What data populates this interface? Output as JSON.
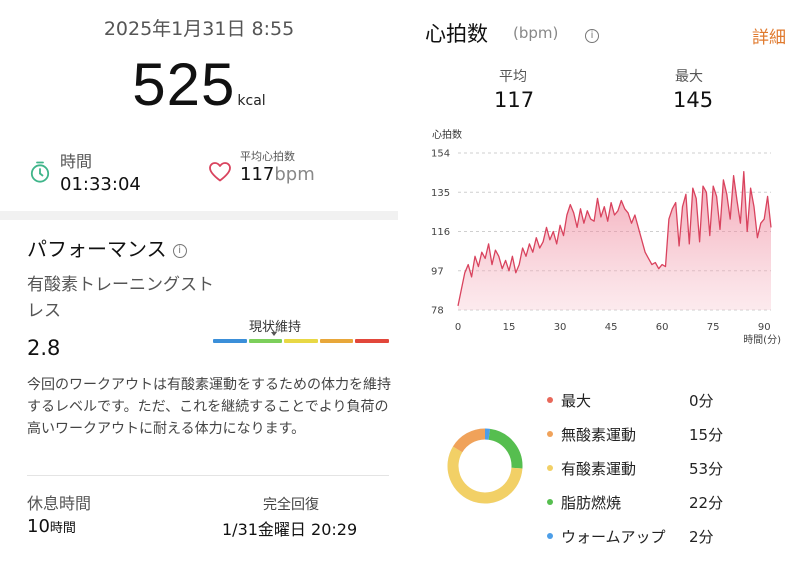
{
  "summary": {
    "datetime": "2025年1月31日 8:55",
    "calories": "525",
    "calories_unit": "kcal",
    "duration_label": "時間",
    "duration_value": "01:33:04",
    "avg_hr_label": "平均心拍数",
    "avg_hr_value": "117",
    "avg_hr_unit": "bpm"
  },
  "performance": {
    "title": "パフォーマンス",
    "info_icon": "i",
    "stress_label": "有酸素トレーニングストレス",
    "stress_value": "2.8",
    "status_label": "現状維持",
    "scale_colors": [
      "#3b8fd9",
      "#7ccf5b",
      "#e8d845",
      "#e8a73a",
      "#e2473b"
    ],
    "description": "今回のワークアウトは有酸素運動をするための体力を維持するレベルです。ただ、これを継続することでより負荷の高いワークアウトに耐える体力になります。",
    "rest_label": "休息時間",
    "rest_value": "10",
    "rest_unit": "時間",
    "recovery_label": "完全回復",
    "recovery_value": "1/31金曜日 20:29"
  },
  "heart_rate": {
    "title": "心拍数",
    "unit": "(bpm)",
    "detail_link": "詳細",
    "avg_label": "平均",
    "avg_value": "117",
    "max_label": "最大",
    "max_value": "145"
  },
  "chart_data": [
    {
      "type": "area",
      "ylabel": "心拍数",
      "xlabel": "時間(分)",
      "y_ticks": [
        154,
        135,
        116,
        97,
        78
      ],
      "x_ticks": [
        0,
        15,
        30,
        45,
        60,
        75,
        90
      ],
      "ylim": [
        78,
        154
      ],
      "xlim": [
        0,
        92
      ],
      "grid": "horizontal dashed",
      "color": "#d9435e",
      "x": [
        0,
        1,
        2,
        3,
        4,
        5,
        6,
        7,
        8,
        9,
        10,
        11,
        12,
        13,
        14,
        15,
        16,
        17,
        18,
        19,
        20,
        21,
        22,
        23,
        24,
        25,
        26,
        27,
        28,
        29,
        30,
        31,
        32,
        33,
        34,
        35,
        36,
        37,
        38,
        39,
        40,
        41,
        42,
        43,
        44,
        45,
        46,
        47,
        48,
        49,
        50,
        51,
        52,
        53,
        54,
        55,
        56,
        57,
        58,
        59,
        60,
        61,
        62,
        63,
        64,
        65,
        66,
        67,
        68,
        69,
        70,
        71,
        72,
        73,
        74,
        75,
        76,
        77,
        78,
        79,
        80,
        81,
        82,
        83,
        84,
        85,
        86,
        87,
        88,
        89,
        90,
        91,
        92
      ],
      "values": [
        80,
        88,
        96,
        100,
        94,
        104,
        99,
        106,
        103,
        110,
        100,
        107,
        104,
        98,
        102,
        97,
        104,
        96,
        100,
        108,
        104,
        110,
        106,
        113,
        108,
        111,
        118,
        112,
        116,
        110,
        119,
        114,
        124,
        129,
        125,
        118,
        127,
        120,
        126,
        122,
        121,
        132,
        123,
        128,
        121,
        130,
        124,
        126,
        131,
        127,
        125,
        120,
        124,
        118,
        112,
        106,
        103,
        100,
        101,
        98,
        100,
        99,
        122,
        127,
        130,
        109,
        128,
        134,
        110,
        137,
        132,
        111,
        138,
        135,
        114,
        138,
        133,
        117,
        141,
        134,
        122,
        143,
        131,
        120,
        145,
        116,
        137,
        128,
        113,
        120,
        122,
        133,
        118
      ]
    },
    {
      "type": "pie",
      "donut": true,
      "categories": [
        "最大",
        "無酸素運動",
        "有酸素運動",
        "脂肪燃焼",
        "ウォームアップ"
      ],
      "values": [
        0,
        15,
        53,
        22,
        2
      ],
      "value_labels": [
        "0分",
        "15分",
        "53分",
        "22分",
        "2分"
      ],
      "colors": [
        "#e8685a",
        "#f0a25a",
        "#f2d066",
        "#56be4f",
        "#4d9ee8"
      ],
      "legend": "right"
    }
  ]
}
